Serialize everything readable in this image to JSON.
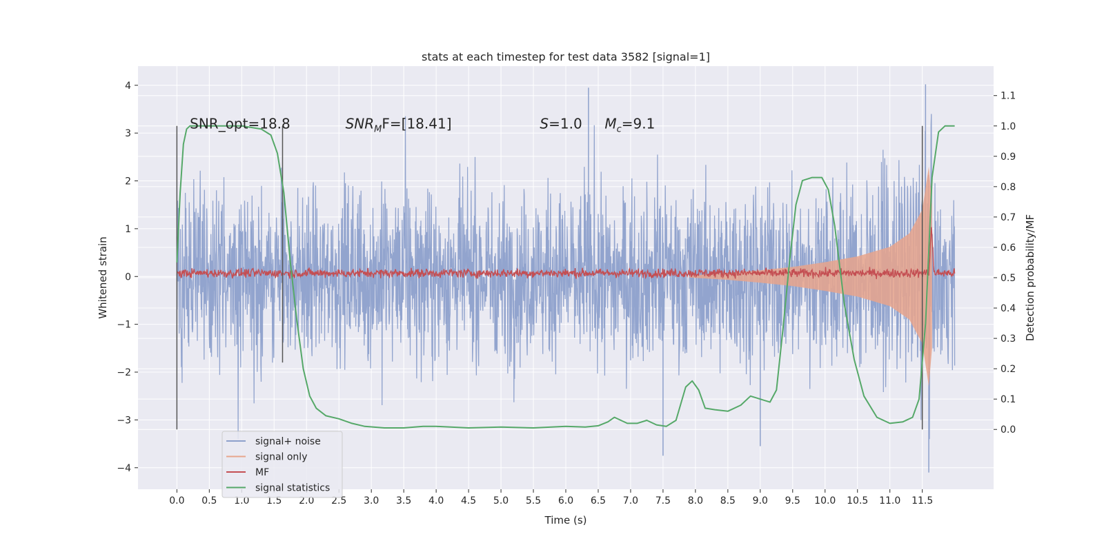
{
  "chart_data": {
    "type": "line",
    "title": "stats at each timestep for test data 3582 [signal=1]",
    "xlabel": "Time (s)",
    "ylabel": "Whitened strain",
    "y2label": "Detection probability/MF",
    "xlim": [
      -0.6,
      12.6
    ],
    "ylim": [
      -4.45,
      4.4
    ],
    "y2lim": [
      -0.197,
      1.197
    ],
    "grid": true,
    "legend_position": "lower-left",
    "x_ticks": [
      "0.0",
      "0.5",
      "1.0",
      "1.5",
      "2.0",
      "2.5",
      "3.0",
      "3.5",
      "4.0",
      "4.5",
      "5.0",
      "5.5",
      "6.0",
      "6.5",
      "7.0",
      "7.5",
      "8.0",
      "8.5",
      "9.0",
      "9.5",
      "10.0",
      "10.5",
      "11.0",
      "11.5"
    ],
    "y_ticks": [
      "4",
      "3",
      "2",
      "1",
      "0",
      "−1",
      "−2",
      "−3",
      "−4"
    ],
    "y2_ticks": [
      "1.1",
      "1.0",
      "0.9",
      "0.8",
      "0.7",
      "0.6",
      "0.5",
      "0.4",
      "0.3",
      "0.2",
      "0.1",
      "0.0"
    ],
    "annotations": [
      {
        "text": "SNR_opt=18.8",
        "x": 0.2,
        "y": 3.2
      },
      {
        "main": "SNR",
        "sub": "M",
        "rest": "F=[18.41]",
        "x": 2.6,
        "y": 3.2
      },
      {
        "main": "S",
        "sub": "",
        "rest": "=1.0",
        "x": 5.6,
        "y": 3.2
      },
      {
        "main": "M",
        "sub": "c",
        "rest": "=9.1",
        "x": 6.6,
        "y": 3.2
      }
    ],
    "vertical_lines": [
      {
        "x": 0.0,
        "y_from": -3.2,
        "y_to": 3.15
      },
      {
        "x": 1.63,
        "y_from": -1.8,
        "y_to": 3.15
      },
      {
        "x": 11.5,
        "y_from": -3.2,
        "y_to": 3.15
      }
    ],
    "series": [
      {
        "name": "signal+ noise",
        "axis": "left",
        "color": "#8da0cb",
        "x_range": [
          0.0,
          12.0
        ],
        "typical_amplitude": 1.9,
        "peak_values": [
          [
            6.35,
            3.95
          ],
          [
            11.55,
            4.02
          ],
          [
            11.6,
            -4.1
          ],
          [
            9.0,
            -3.55
          ],
          [
            7.5,
            -3.75
          ]
        ]
      },
      {
        "name": "signal only",
        "axis": "left",
        "color": "#e8a58c",
        "envelope_x": [
          7.9,
          8.5,
          9.0,
          9.5,
          10.0,
          10.5,
          11.0,
          11.3,
          11.5,
          11.6,
          11.65
        ],
        "envelope_amplitude": [
          0.02,
          0.07,
          0.13,
          0.2,
          0.3,
          0.42,
          0.62,
          0.9,
          1.4,
          2.3,
          1.5
        ]
      },
      {
        "name": "MF",
        "axis": "right",
        "color": "#c44e52",
        "baseline": 0.515,
        "noise": 0.012,
        "peak": {
          "x": 11.64,
          "y": 0.67
        }
      },
      {
        "name": "signal statistics",
        "axis": "right",
        "color": "#55a868",
        "x": [
          0.0,
          0.05,
          0.1,
          0.15,
          0.2,
          0.3,
          0.5,
          1.0,
          1.3,
          1.45,
          1.55,
          1.65,
          1.75,
          1.85,
          1.95,
          2.05,
          2.15,
          2.3,
          2.5,
          2.7,
          2.9,
          3.2,
          3.5,
          3.8,
          4.0,
          4.5,
          5.0,
          5.5,
          6.0,
          6.3,
          6.5,
          6.65,
          6.75,
          6.85,
          6.95,
          7.1,
          7.25,
          7.4,
          7.55,
          7.7,
          7.85,
          7.95,
          8.05,
          8.15,
          8.3,
          8.5,
          8.7,
          8.85,
          9.0,
          9.15,
          9.25,
          9.35,
          9.45,
          9.55,
          9.65,
          9.8,
          9.95,
          10.05,
          10.15,
          10.3,
          10.45,
          10.6,
          10.8,
          11.0,
          11.2,
          11.35,
          11.45,
          11.55,
          11.65,
          11.75,
          11.85,
          11.95,
          12.0
        ],
        "y": [
          0.55,
          0.78,
          0.94,
          0.99,
          1.0,
          1.0,
          1.0,
          1.0,
          0.99,
          0.97,
          0.91,
          0.78,
          0.55,
          0.36,
          0.2,
          0.11,
          0.07,
          0.045,
          0.035,
          0.02,
          0.01,
          0.005,
          0.005,
          0.01,
          0.01,
          0.005,
          0.008,
          0.005,
          0.01,
          0.008,
          0.012,
          0.025,
          0.04,
          0.03,
          0.02,
          0.02,
          0.03,
          0.015,
          0.01,
          0.03,
          0.14,
          0.16,
          0.13,
          0.07,
          0.065,
          0.06,
          0.08,
          0.11,
          0.1,
          0.09,
          0.13,
          0.33,
          0.55,
          0.74,
          0.82,
          0.83,
          0.83,
          0.79,
          0.67,
          0.41,
          0.23,
          0.11,
          0.04,
          0.02,
          0.025,
          0.04,
          0.1,
          0.35,
          0.83,
          0.98,
          1.0,
          1.0,
          1.0
        ]
      }
    ]
  }
}
